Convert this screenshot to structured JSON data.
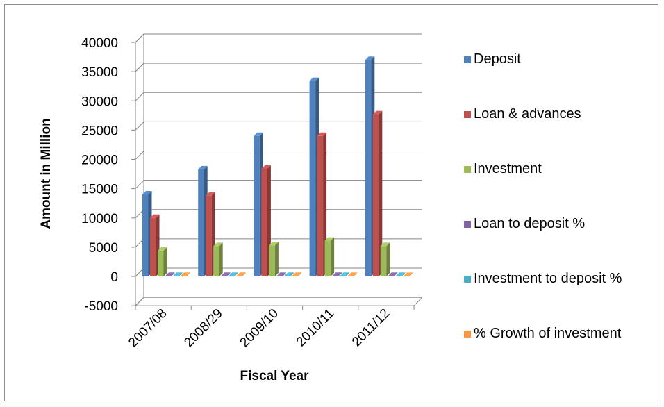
{
  "chart_data": {
    "type": "bar",
    "style": "3d-clustered-column",
    "xlabel": "Fiscal Year",
    "ylabel": "Amount in Million",
    "categories": [
      "2007/08",
      "2008/29",
      "2009/10",
      "2010/11",
      "2011/12"
    ],
    "ylim": [
      -5000,
      40000
    ],
    "yticks": [
      -5000,
      0,
      5000,
      10000,
      15000,
      20000,
      25000,
      30000,
      35000,
      40000
    ],
    "grid": true,
    "legend_position": "right",
    "series": [
      {
        "name": "Deposit",
        "color": "#4F81BD",
        "values": [
          14000,
          18300,
          24000,
          33400,
          37000
        ]
      },
      {
        "name": "Loan & advances",
        "color": "#C0504D",
        "values": [
          10000,
          13800,
          18400,
          24000,
          27700
        ]
      },
      {
        "name": "Investment",
        "color": "#9BBB59",
        "values": [
          4400,
          5200,
          5300,
          6100,
          5200
        ]
      },
      {
        "name": "Loan to deposit %",
        "color": "#8064A2",
        "values": [
          70,
          75,
          77,
          72,
          75
        ]
      },
      {
        "name": "Investment to deposit %",
        "color": "#4BACC6",
        "values": [
          31,
          28,
          22,
          18,
          14
        ]
      },
      {
        "name": "% Growth of investment",
        "color": "#F79646",
        "values": [
          20,
          18,
          2,
          15,
          -15
        ]
      }
    ]
  }
}
